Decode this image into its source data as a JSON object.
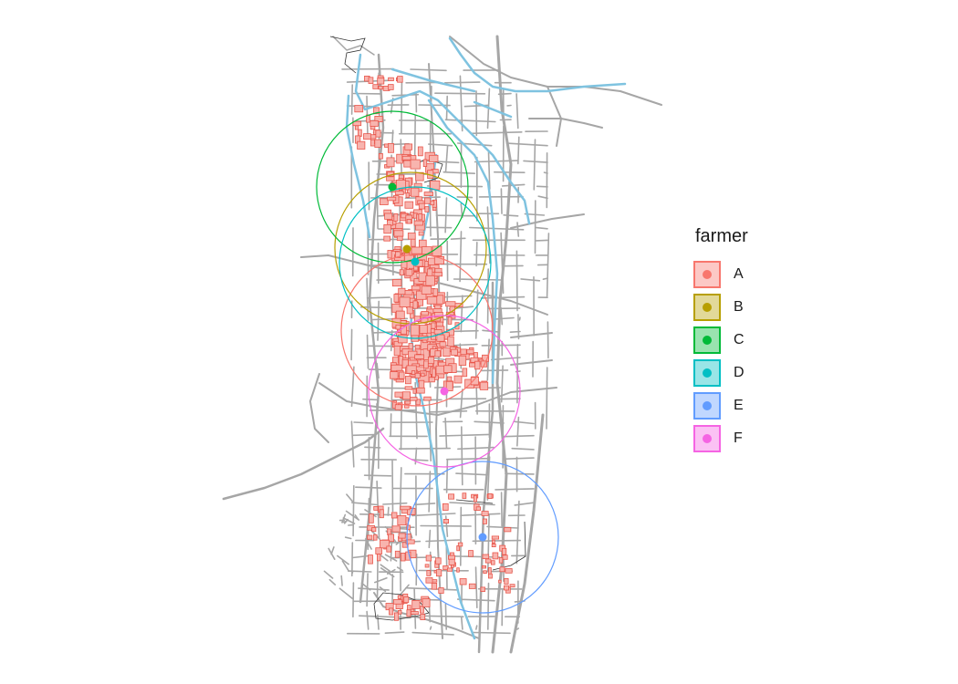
{
  "legend": {
    "title": "farmer",
    "items": [
      {
        "label": "A",
        "color": "#F8766D"
      },
      {
        "label": "B",
        "color": "#B79F00"
      },
      {
        "label": "C",
        "color": "#00BA38"
      },
      {
        "label": "D",
        "color": "#00BFC4"
      },
      {
        "label": "E",
        "color": "#619CFF"
      },
      {
        "label": "F",
        "color": "#F564E3"
      }
    ]
  },
  "map": {
    "road_color": "#a6a6a6",
    "river_color": "#7fc3e0",
    "parcel_fill": "#f8b4ae",
    "parcel_stroke": "#e8554a",
    "background": "#ffffff"
  }
}
